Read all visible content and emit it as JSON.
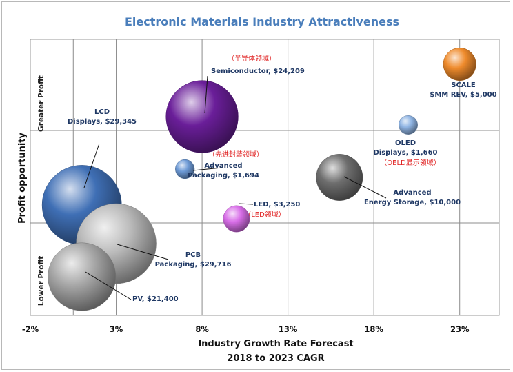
{
  "chart_data": {
    "type": "scatter",
    "title": "Electronic Materials Industry Attractiveness",
    "xlabel": [
      "Industry Growth Rate Forecast",
      "2018 to 2023 CAGR"
    ],
    "ylabel": "Profit opportunity",
    "y_bands": [
      "Greater Profit",
      "Lower Profit"
    ],
    "x_ticks": [
      "-2%",
      "3%",
      "8%",
      "13%",
      "18%",
      "23%"
    ],
    "x_tick_values": [
      -2,
      3,
      8,
      13,
      18,
      23
    ],
    "xlim": [
      -2,
      25.3
    ],
    "ylim": [
      0,
      10
    ],
    "grid": true,
    "bubbles": [
      {
        "name": "LCD Displays",
        "label_lines": [
          "LCD",
          "Displays,  $29,345"
        ],
        "cn": "",
        "x": 1.0,
        "y": 4.0,
        "size": 29345,
        "color": "#3f6fb5"
      },
      {
        "name": "PCB Packaging",
        "label_lines": [
          "PCB",
          "Packaging,  $29,716"
        ],
        "cn": "",
        "x": 3.0,
        "y": 2.6,
        "size": 29716,
        "color": "#bbbbbb"
      },
      {
        "name": "PV",
        "label_lines": [
          "PV,  $21,400"
        ],
        "cn": "",
        "x": 1.0,
        "y": 1.4,
        "size": 21400,
        "color": "#a8a8a8"
      },
      {
        "name": "Semiconductor",
        "label_lines": [
          "Semiconductor,  $24,209"
        ],
        "cn": "（半导体领域）",
        "x": 8.0,
        "y": 7.2,
        "size": 24209,
        "color": "#6a1e99"
      },
      {
        "name": "Advanced Packaging",
        "label_lines": [
          "Advanced",
          "Packaging,  $1,694"
        ],
        "cn": "（先进封装领域）",
        "x": 7.0,
        "y": 5.3,
        "size": 1694,
        "color": "#6d9ad6"
      },
      {
        "name": "LED",
        "label_lines": [
          "LED,  $3,250"
        ],
        "cn": "（LED领域）",
        "x": 10.0,
        "y": 3.5,
        "size": 3250,
        "color": "#d86ee8"
      },
      {
        "name": "Advanced Energy Storage",
        "label_lines": [
          "Advanced",
          "Energy Storage,  $10,000"
        ],
        "cn": "",
        "x": 16.0,
        "y": 5.0,
        "size": 10000,
        "color": "#6e6e6e"
      },
      {
        "name": "OLED Displays",
        "label_lines": [
          "OLED",
          "Displays,  $1,660"
        ],
        "cn": "（OELD显示领域）",
        "x": 20.0,
        "y": 6.9,
        "size": 1660,
        "color": "#8fb4e3"
      },
      {
        "name": "SCALE",
        "label_lines": [
          "SCALE",
          "$MM REV,  $5,000"
        ],
        "cn": "",
        "x": 23.0,
        "y": 9.1,
        "size": 5000,
        "color": "#ef8b2c"
      }
    ]
  }
}
